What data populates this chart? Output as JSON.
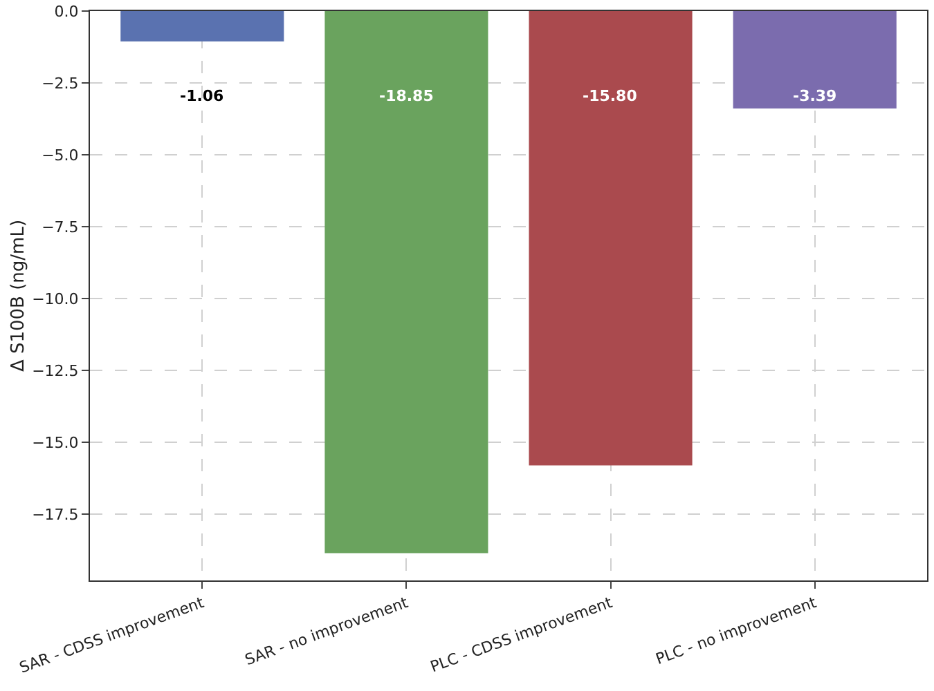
{
  "chart_data": {
    "type": "bar",
    "ylabel": "Δ S100B (ng/mL)",
    "categories": [
      "SAR - CDSS improvement",
      "SAR - no improvement",
      "PLC - CDSS improvement",
      "PLC - no improvement"
    ],
    "values": [
      -1.06,
      -18.85,
      -15.8,
      -3.39
    ],
    "value_labels": [
      "-1.06",
      "-18.85",
      "-15.80",
      "-3.39"
    ],
    "colors": [
      "#5a72b0",
      "#6aa35e",
      "#aa4a4e",
      "#7b6cae"
    ],
    "ylim": [
      -19.8,
      0
    ],
    "yticks": [
      {
        "value": -17.5,
        "label": "−17.5"
      },
      {
        "value": -15,
        "label": "−15.0"
      },
      {
        "value": -12.5,
        "label": "−12.5"
      },
      {
        "value": -10,
        "label": "−10.0"
      },
      {
        "value": -7.5,
        "label": "−7.5"
      },
      {
        "value": -5,
        "label": "−5.0"
      },
      {
        "value": -2.5,
        "label": "−2.5"
      },
      {
        "value": 0,
        "label": "0.0"
      }
    ],
    "grid": true
  }
}
